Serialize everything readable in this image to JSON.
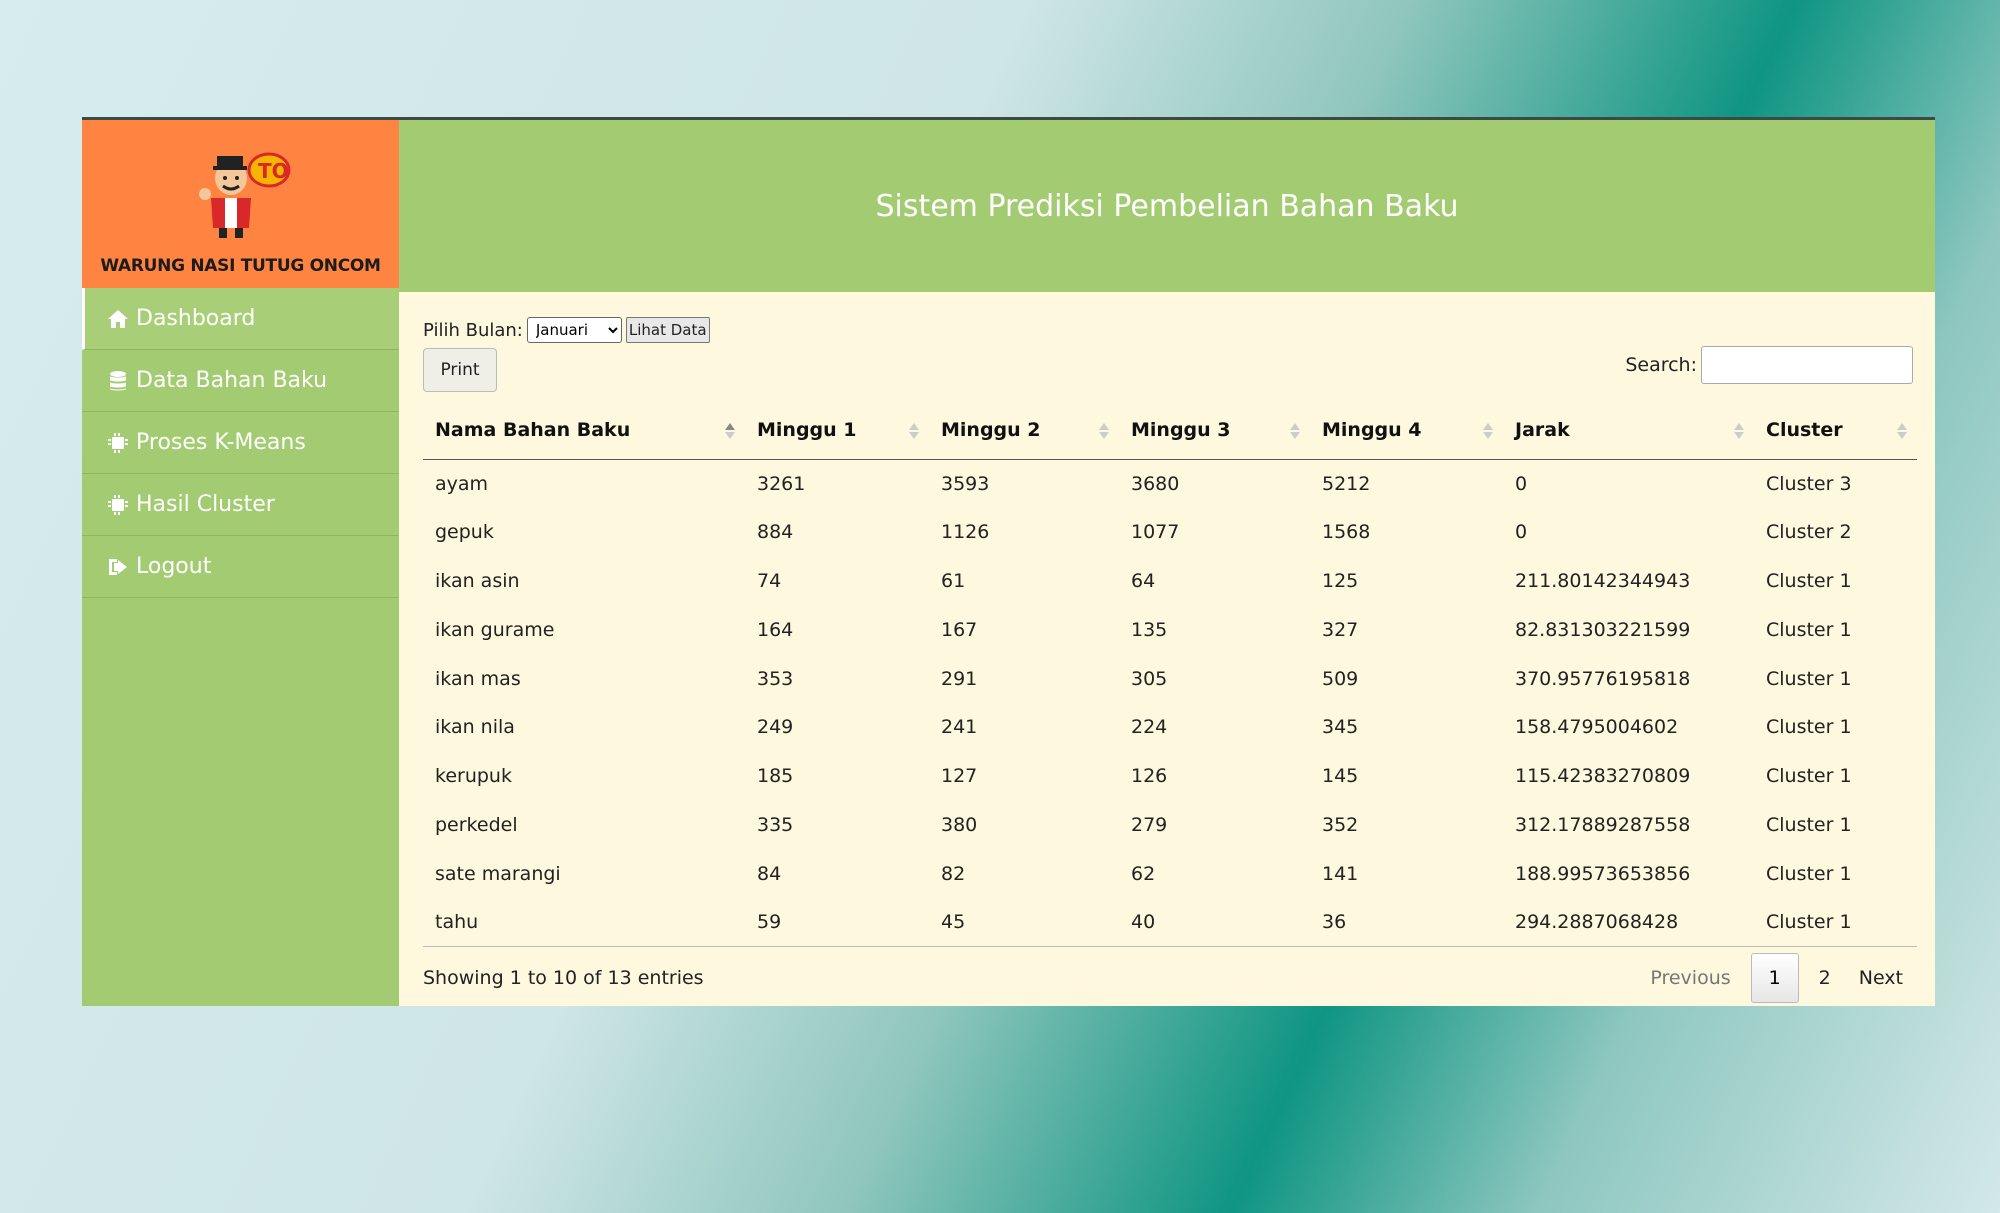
{
  "brand": {
    "name": "WARUNG NASI TUTUG ONCOM",
    "logo_text": "TO"
  },
  "sidebar": {
    "items": [
      {
        "label": "Dashboard",
        "icon": "home-icon"
      },
      {
        "label": "Data Bahan Baku",
        "icon": "database-icon"
      },
      {
        "label": "Proses K-Means",
        "icon": "chip-icon"
      },
      {
        "label": "Hasil Cluster",
        "icon": "chip-icon"
      },
      {
        "label": "Logout",
        "icon": "logout-icon"
      }
    ]
  },
  "header": {
    "title": "Sistem Prediksi Pembelian Bahan Baku"
  },
  "filter": {
    "label": "Pilih Bulan:",
    "selected": "Januari",
    "view_button": "Lihat Data"
  },
  "print_button": "Print",
  "search": {
    "label": "Search:",
    "value": ""
  },
  "table": {
    "columns": [
      "Nama Bahan Baku",
      "Minggu 1",
      "Minggu 2",
      "Minggu 3",
      "Minggu 4",
      "Jarak",
      "Cluster"
    ],
    "rows": [
      [
        "ayam",
        "3261",
        "3593",
        "3680",
        "5212",
        "0",
        "Cluster 3"
      ],
      [
        "gepuk",
        "884",
        "1126",
        "1077",
        "1568",
        "0",
        "Cluster 2"
      ],
      [
        "ikan asin",
        "74",
        "61",
        "64",
        "125",
        "211.80142344943",
        "Cluster 1"
      ],
      [
        "ikan gurame",
        "164",
        "167",
        "135",
        "327",
        "82.831303221599",
        "Cluster 1"
      ],
      [
        "ikan mas",
        "353",
        "291",
        "305",
        "509",
        "370.95776195818",
        "Cluster 1"
      ],
      [
        "ikan nila",
        "249",
        "241",
        "224",
        "345",
        "158.4795004602",
        "Cluster 1"
      ],
      [
        "kerupuk",
        "185",
        "127",
        "126",
        "145",
        "115.42383270809",
        "Cluster 1"
      ],
      [
        "perkedel",
        "335",
        "380",
        "279",
        "352",
        "312.17889287558",
        "Cluster 1"
      ],
      [
        "sate marangi",
        "84",
        "82",
        "62",
        "141",
        "188.99573653856",
        "Cluster 1"
      ],
      [
        "tahu",
        "59",
        "45",
        "40",
        "36",
        "294.2887068428",
        "Cluster 1"
      ]
    ]
  },
  "pagination": {
    "info": "Showing 1 to 10 of 13 entries",
    "previous": "Previous",
    "pages": [
      "1",
      "2"
    ],
    "next": "Next"
  }
}
